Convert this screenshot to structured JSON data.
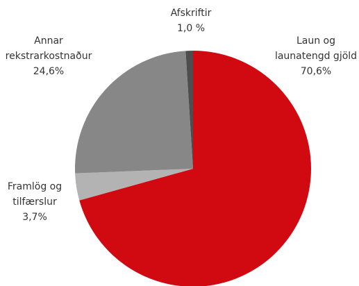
{
  "chart_data": {
    "type": "pie",
    "categories": [
      "Laun og launatengd gjöld",
      "Framlög og tilfærslur",
      "Annar rekstrarkostnaður",
      "Afskriftir"
    ],
    "values": [
      70.6,
      3.7,
      24.6,
      1.0
    ],
    "value_labels": [
      "70,6%",
      "3,7%",
      "24,6%",
      "1,0 %"
    ],
    "colors": [
      "#d10a11",
      "#b3b3b3",
      "#878787",
      "#4d4d4d"
    ]
  }
}
